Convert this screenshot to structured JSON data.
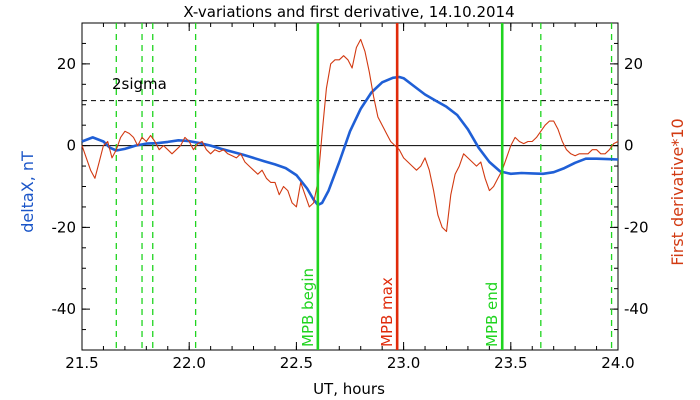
{
  "chart_data": {
    "type": "line",
    "title": "X-variations and first derivative, 14.10.2014",
    "xlabel": "UT, hours",
    "ylabel_left": "deltaX, nT",
    "ylabel_right": "First derivative*10",
    "xlim": [
      21.5,
      24.0
    ],
    "ylim": [
      -50,
      30
    ],
    "x_ticks": [
      "21.5",
      "22.0",
      "22.5",
      "23.0",
      "23.5",
      "24.0"
    ],
    "y_ticks_left": [
      "20",
      "0",
      "-20",
      "-40"
    ],
    "y_ticks_right": [
      "20",
      "0",
      "-20",
      "-40"
    ],
    "colors": {
      "deltaX": "#1f5fd6",
      "derivative": "#d23a12",
      "mpb_begin": "#1fd41f",
      "mpb_max": "#e02a0a",
      "mpb_end": "#1fd41f",
      "dashed_green": "#1fd41f",
      "axis_left_label": "#1a55c8",
      "axis_right_label": "#d23a12"
    },
    "sigma_label": "2sigma",
    "sigma_level": 11.0,
    "zero_line": 0.0,
    "dashed_green_lines": [
      21.66,
      21.78,
      21.83,
      22.03,
      23.64,
      23.97
    ],
    "markers": [
      {
        "label": "MPB begin",
        "x": 22.6,
        "color_key": "mpb_begin"
      },
      {
        "label": "MPB max",
        "x": 22.97,
        "color_key": "mpb_max"
      },
      {
        "label": "MPB end",
        "x": 23.46,
        "color_key": "mpb_end"
      }
    ],
    "series": [
      {
        "key": "deltaX",
        "name": "deltaX, nT",
        "x": [
          21.5,
          21.55,
          21.6,
          21.63,
          21.66,
          21.7,
          21.75,
          21.8,
          21.85,
          21.9,
          21.95,
          22.0,
          22.05,
          22.1,
          22.15,
          22.2,
          22.25,
          22.3,
          22.35,
          22.4,
          22.45,
          22.5,
          22.55,
          22.58,
          22.6,
          22.62,
          22.65,
          22.7,
          22.75,
          22.8,
          22.85,
          22.9,
          22.95,
          22.98,
          23.0,
          23.05,
          23.1,
          23.15,
          23.2,
          23.25,
          23.3,
          23.35,
          23.4,
          23.45,
          23.5,
          23.55,
          23.6,
          23.65,
          23.7,
          23.75,
          23.8,
          23.85,
          23.9,
          23.95,
          24.0
        ],
        "y": [
          1.0,
          2.0,
          1.0,
          -0.5,
          -1.2,
          -0.8,
          0.0,
          0.5,
          0.6,
          0.9,
          1.3,
          1.1,
          0.6,
          0.0,
          -0.8,
          -1.5,
          -2.2,
          -3.0,
          -3.8,
          -4.6,
          -5.5,
          -7.2,
          -10.5,
          -13.2,
          -14.5,
          -14.0,
          -11.0,
          -4.0,
          3.5,
          9.0,
          13.0,
          15.5,
          16.6,
          16.8,
          16.5,
          14.5,
          12.5,
          11.0,
          9.5,
          7.5,
          4.0,
          -0.5,
          -4.0,
          -6.3,
          -6.9,
          -6.7,
          -6.8,
          -6.9,
          -6.5,
          -5.5,
          -4.2,
          -3.2,
          -3.2,
          -3.3,
          -3.4
        ]
      },
      {
        "key": "derivative",
        "name": "First derivative*10",
        "x": [
          21.5,
          21.52,
          21.54,
          21.56,
          21.58,
          21.6,
          21.62,
          21.64,
          21.66,
          21.68,
          21.7,
          21.72,
          21.74,
          21.76,
          21.78,
          21.8,
          21.82,
          21.84,
          21.86,
          21.88,
          21.9,
          21.92,
          21.94,
          21.96,
          21.98,
          22.0,
          22.02,
          22.04,
          22.06,
          22.08,
          22.1,
          22.12,
          22.14,
          22.16,
          22.18,
          22.2,
          22.22,
          22.24,
          22.26,
          22.28,
          22.3,
          22.32,
          22.34,
          22.36,
          22.38,
          22.4,
          22.42,
          22.44,
          22.46,
          22.48,
          22.5,
          22.52,
          22.54,
          22.56,
          22.58,
          22.6,
          22.62,
          22.64,
          22.66,
          22.68,
          22.7,
          22.72,
          22.74,
          22.76,
          22.78,
          22.8,
          22.82,
          22.84,
          22.86,
          22.88,
          22.9,
          22.92,
          22.94,
          22.96,
          22.98,
          23.0,
          23.02,
          23.04,
          23.06,
          23.08,
          23.1,
          23.12,
          23.14,
          23.16,
          23.18,
          23.2,
          23.22,
          23.24,
          23.26,
          23.28,
          23.3,
          23.32,
          23.34,
          23.36,
          23.38,
          23.4,
          23.42,
          23.44,
          23.46,
          23.48,
          23.5,
          23.52,
          23.54,
          23.56,
          23.58,
          23.6,
          23.62,
          23.64,
          23.66,
          23.68,
          23.7,
          23.72,
          23.74,
          23.76,
          23.78,
          23.8,
          23.82,
          23.84,
          23.86,
          23.88,
          23.9,
          23.92,
          23.94,
          23.96,
          23.98,
          24.0
        ],
        "y": [
          0,
          -3,
          -6,
          -8,
          -4,
          0,
          1,
          -3,
          -1,
          2,
          3.5,
          3,
          2,
          0,
          2,
          1,
          2.5,
          1,
          -1,
          0,
          -1,
          -2,
          -1,
          0,
          2,
          1,
          -1,
          0.5,
          1,
          -1,
          -2,
          -1,
          -1.5,
          -1,
          -2,
          -2.5,
          -3,
          -2,
          -4,
          -5,
          -6,
          -7,
          -6,
          -8,
          -9,
          -9,
          -12,
          -10,
          -11,
          -14,
          -15,
          -9,
          -12,
          -15,
          -14,
          -9,
          3,
          14,
          20,
          21,
          21,
          22,
          21,
          19,
          24,
          26,
          23,
          18,
          12,
          7,
          5,
          3,
          1,
          0,
          -1,
          -3,
          -4,
          -5,
          -6,
          -5,
          -3,
          -6,
          -11,
          -17,
          -20,
          -21,
          -12,
          -7,
          -5,
          -2,
          -3,
          -4,
          -5,
          -4,
          -8,
          -11,
          -10,
          -8,
          -6,
          -3,
          0,
          2,
          1,
          0.5,
          1,
          1,
          2,
          3.5,
          5,
          6,
          6,
          4,
          1,
          -1,
          -2,
          -2.5,
          -2,
          -2,
          -2,
          -1,
          -1,
          -2,
          -2,
          -1,
          0.5,
          1
        ]
      }
    ]
  }
}
